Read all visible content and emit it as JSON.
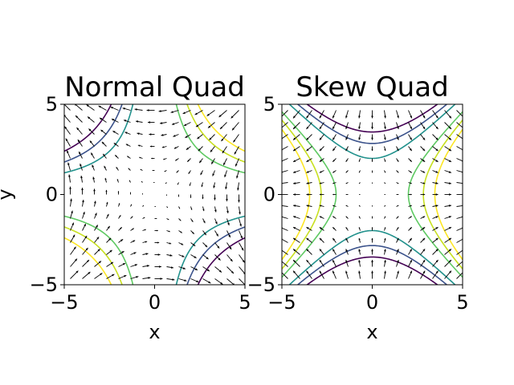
{
  "chart_data": [
    {
      "type": "contour",
      "title": "Normal Quad",
      "xlabel": "x",
      "ylabel": "y",
      "xlim": [
        -5,
        5
      ],
      "ylim": [
        -5,
        5
      ],
      "xticks": [
        "−5",
        "0",
        "5"
      ],
      "yticks": [
        "−5",
        "0",
        "5"
      ],
      "field": "xy",
      "contour_levels": [
        -12,
        -9,
        -6,
        6,
        9,
        12
      ],
      "quiver": true,
      "grid": false
    },
    {
      "type": "contour",
      "title": "Skew Quad",
      "xlabel": "x",
      "ylabel": "",
      "xlim": [
        -5,
        5
      ],
      "ylim": [
        -5,
        5
      ],
      "xticks": [
        "−5",
        "0",
        "5"
      ],
      "yticks": [
        "−5",
        "0",
        "5"
      ],
      "field": "(x^2 - y^2)/2",
      "contour_levels": [
        -6,
        -4,
        -2,
        2,
        4,
        6
      ],
      "quiver": true,
      "grid": false
    }
  ],
  "colormap": [
    "#440154",
    "#3b528b",
    "#21918c",
    "#5ec962",
    "#c8e020",
    "#fde725"
  ]
}
